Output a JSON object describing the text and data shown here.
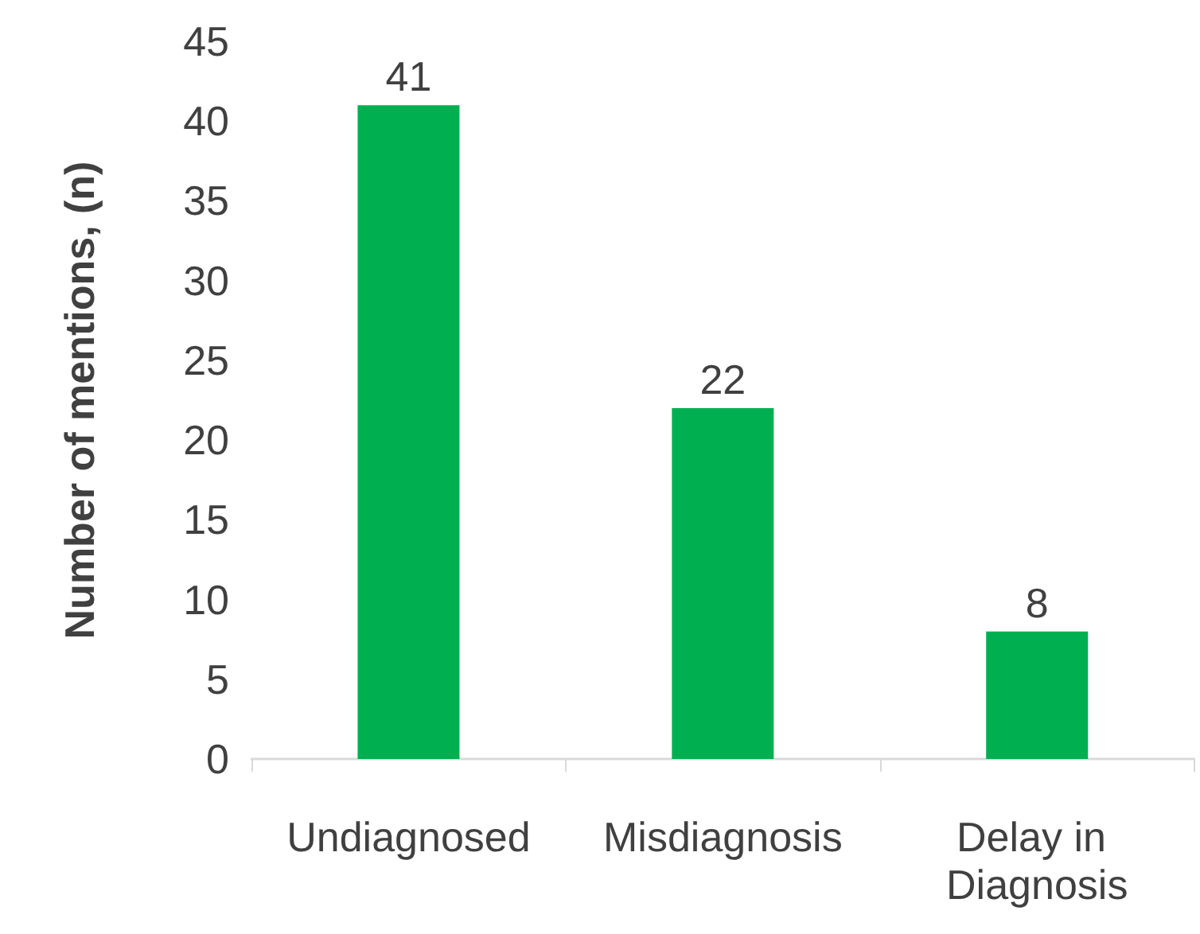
{
  "chart_data": {
    "type": "bar",
    "ylabel": "Number of mentions, (n)",
    "categories": [
      "Undiagnosed",
      "Misdiagnosis",
      "Delay in Diagnosis"
    ],
    "values": [
      41,
      22,
      8
    ],
    "color": "#00b050",
    "ylim": [
      0,
      45
    ],
    "yticks": [
      0,
      5,
      10,
      15,
      20,
      25,
      30,
      35,
      40,
      45
    ],
    "grid": false,
    "data_labels": true
  }
}
